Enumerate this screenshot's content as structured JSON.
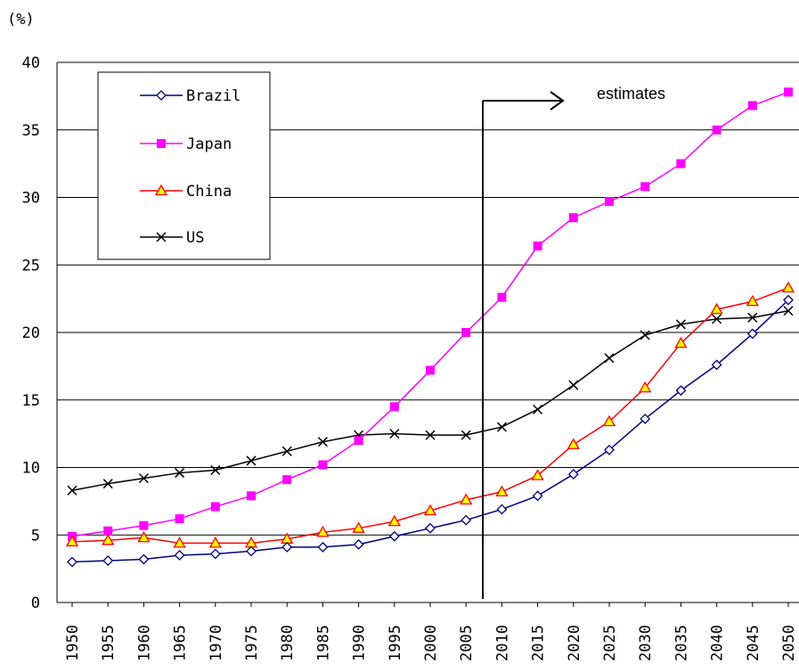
{
  "chart_data": {
    "type": "line",
    "unit_label": "(%)",
    "x": [
      1950,
      1955,
      1960,
      1965,
      1970,
      1975,
      1980,
      1985,
      1990,
      1995,
      2000,
      2005,
      2010,
      2015,
      2020,
      2025,
      2030,
      2035,
      2040,
      2045,
      2050
    ],
    "x_labels": [
      "1950",
      "1955",
      "1960",
      "1965",
      "1970",
      "1975",
      "1980",
      "1985",
      "1990",
      "1995",
      "2000",
      "2005",
      "2010",
      "2015",
      "2020",
      "2025",
      "2030",
      "2035",
      "2040",
      "2045",
      "2050"
    ],
    "ylim": [
      0,
      40
    ],
    "yticks": [
      0,
      5,
      10,
      15,
      20,
      25,
      30,
      35,
      40
    ],
    "grid": true,
    "legend_position": "top-left",
    "series": [
      {
        "name": "Brazil",
        "color": "#000080",
        "marker": "diamond",
        "values": [
          3.0,
          3.1,
          3.2,
          3.5,
          3.6,
          3.8,
          4.1,
          4.1,
          4.3,
          4.9,
          5.5,
          6.1,
          6.9,
          7.9,
          9.5,
          11.3,
          13.6,
          15.7,
          17.6,
          19.9,
          22.4
        ]
      },
      {
        "name": "Japan",
        "color": "#ff00ff",
        "marker": "square",
        "values": [
          4.9,
          5.3,
          5.7,
          6.2,
          7.1,
          7.9,
          9.1,
          10.2,
          12.0,
          14.5,
          17.2,
          20.0,
          22.6,
          26.4,
          28.5,
          29.7,
          30.8,
          32.5,
          35.0,
          36.8,
          37.8
        ]
      },
      {
        "name": "China",
        "color": "#ff0000",
        "marker": "triangle",
        "values": [
          4.5,
          4.6,
          4.8,
          4.4,
          4.4,
          4.4,
          4.7,
          5.2,
          5.5,
          6.0,
          6.8,
          7.6,
          8.2,
          9.4,
          11.7,
          13.4,
          15.9,
          19.2,
          21.7,
          22.3,
          23.3
        ]
      },
      {
        "name": "US",
        "color": "#000000",
        "marker": "x",
        "values": [
          8.3,
          8.8,
          9.2,
          9.6,
          9.8,
          10.5,
          11.2,
          11.9,
          12.4,
          12.5,
          12.4,
          12.4,
          13.0,
          14.3,
          16.1,
          18.1,
          19.8,
          20.6,
          21.0,
          21.1,
          21.6
        ]
      }
    ],
    "annotation": {
      "text": "estimates",
      "at_x": 2008
    }
  }
}
